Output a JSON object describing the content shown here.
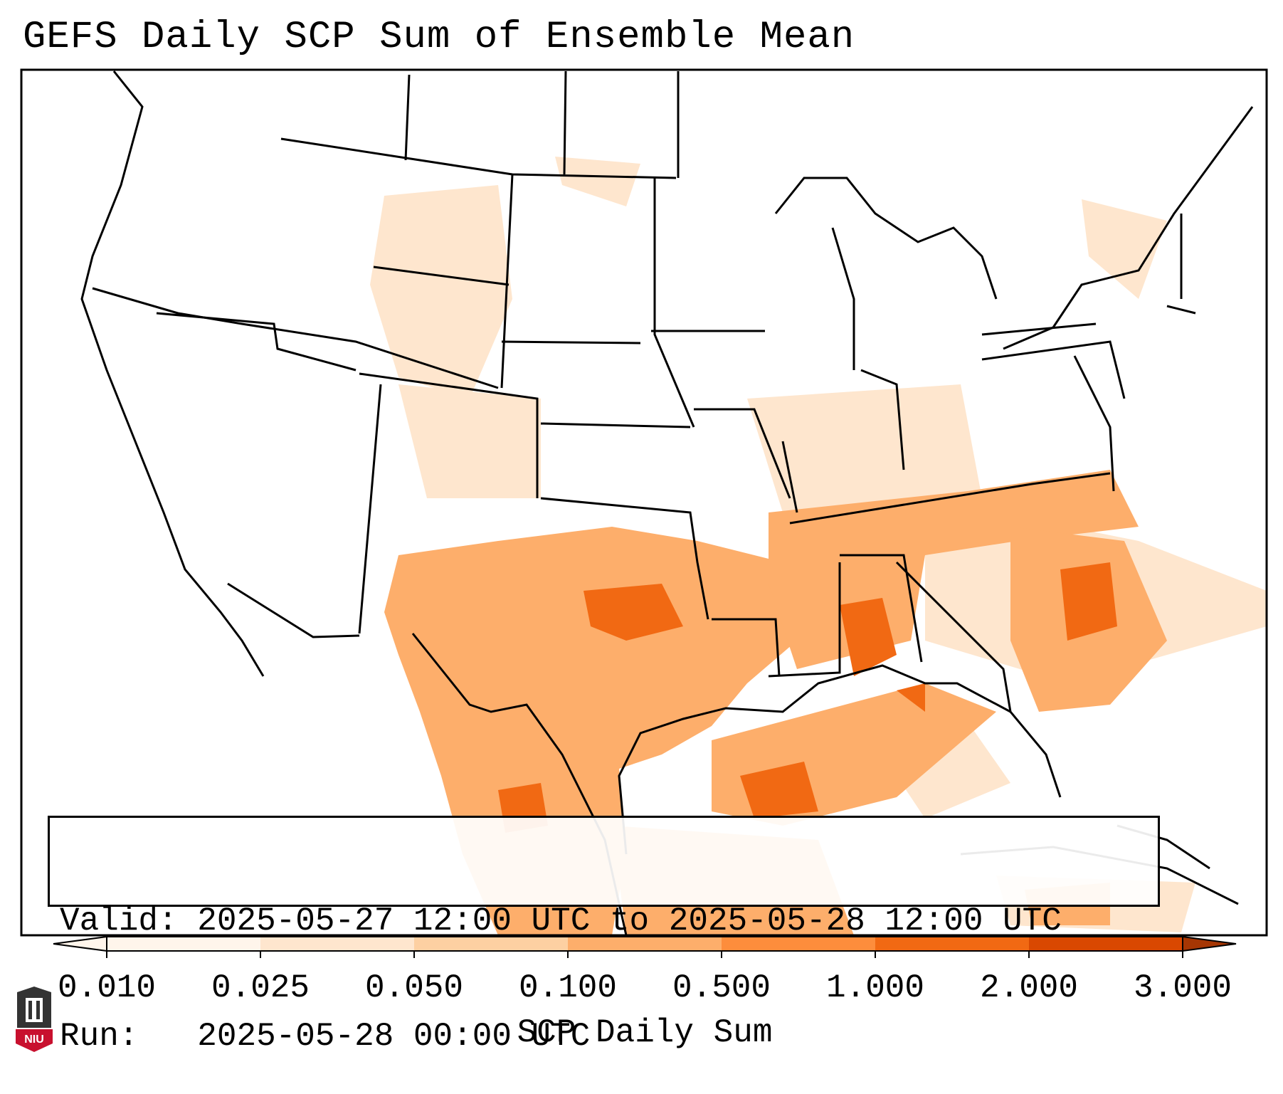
{
  "title": "GEFS Daily SCP Sum of Ensemble Mean",
  "info": {
    "valid_label": "Valid:",
    "valid_value": "2025-05-27 12:00 UTC to 2025-05-28 12:00 UTC",
    "run_label": "Run:",
    "run_value": "2025-05-28 00:00 UTC"
  },
  "colorbar": {
    "title": "SCP Daily Sum",
    "ticks": [
      "0.010",
      "0.025",
      "0.050",
      "0.100",
      "0.500",
      "1.000",
      "2.000",
      "3.000"
    ],
    "colors": [
      "#fff5eb",
      "#fee6ce",
      "#fdd0a2",
      "#fdae6b",
      "#fd8d3c",
      "#f16913",
      "#d94801",
      "#a63603"
    ],
    "extend": "both"
  },
  "logo": {
    "text": "NIU",
    "accent": "#c8102e"
  },
  "colors": {
    "field_light": "#fee6ce",
    "field_mid": "#fdae6b",
    "field_strong": "#f16913"
  }
}
